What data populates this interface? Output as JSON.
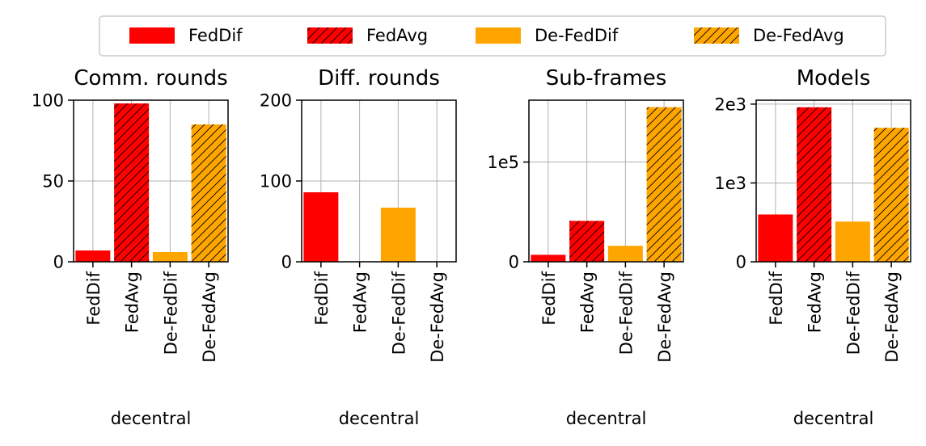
{
  "legend": {
    "entries": [
      {
        "label": "FedDif",
        "color": "#ff0000",
        "hatch": false
      },
      {
        "label": "FedAvg",
        "color": "#ff0000",
        "hatch": true
      },
      {
        "label": "De-FedDif",
        "color": "#ffa500",
        "hatch": false
      },
      {
        "label": "De-FedAvg",
        "color": "#ffa500",
        "hatch": true
      }
    ],
    "placement": "top-center"
  },
  "chart_data": [
    {
      "type": "bar",
      "title": "Comm. rounds",
      "xlabel": "decentral",
      "ylabel": "",
      "categories": [
        "FedDif",
        "FedAvg",
        "De-FedDif",
        "De-FedAvg"
      ],
      "values": [
        7,
        98,
        6,
        85
      ],
      "colors": [
        "#ff0000",
        "#ff0000",
        "#ffa500",
        "#ffa500"
      ],
      "hatched": [
        false,
        true,
        false,
        true
      ],
      "ylim": [
        0,
        100
      ],
      "yticks": [
        0,
        50,
        100
      ],
      "ytick_labels": [
        "0",
        "50",
        "100"
      ],
      "grid": true
    },
    {
      "type": "bar",
      "title": "Diff. rounds",
      "xlabel": "decentral",
      "ylabel": "",
      "categories": [
        "FedDif",
        "FedAvg",
        "De-FedDif",
        "De-FedAvg"
      ],
      "values": [
        86,
        0,
        67,
        0
      ],
      "colors": [
        "#ff0000",
        "#ff0000",
        "#ffa500",
        "#ffa500"
      ],
      "hatched": [
        false,
        true,
        false,
        true
      ],
      "ylim": [
        0,
        200
      ],
      "yticks": [
        0,
        100,
        200
      ],
      "ytick_labels": [
        "0",
        "100",
        "200"
      ],
      "grid": true
    },
    {
      "type": "bar",
      "title": "Sub-frames",
      "xlabel": "decentral",
      "ylabel": "",
      "categories": [
        "FedDif",
        "FedAvg",
        "De-FedDif",
        "De-FedAvg"
      ],
      "values": [
        7000,
        41000,
        16000,
        155000
      ],
      "colors": [
        "#ff0000",
        "#ff0000",
        "#ffa500",
        "#ffa500"
      ],
      "hatched": [
        false,
        true,
        false,
        true
      ],
      "ylim": [
        0,
        162000
      ],
      "yticks": [
        0,
        100000
      ],
      "ytick_labels": [
        "0",
        "1e5"
      ],
      "grid": true
    },
    {
      "type": "bar",
      "title": "Models",
      "xlabel": "decentral",
      "ylabel": "",
      "categories": [
        "FedDif",
        "FedAvg",
        "De-FedDif",
        "De-FedAvg"
      ],
      "values": [
        600,
        1960,
        510,
        1700
      ],
      "colors": [
        "#ff0000",
        "#ff0000",
        "#ffa500",
        "#ffa500"
      ],
      "hatched": [
        false,
        true,
        false,
        true
      ],
      "ylim": [
        0,
        2050
      ],
      "yticks": [
        0,
        1000,
        2000
      ],
      "ytick_labels": [
        "0",
        "1e3",
        "2e3"
      ],
      "grid": true
    }
  ]
}
